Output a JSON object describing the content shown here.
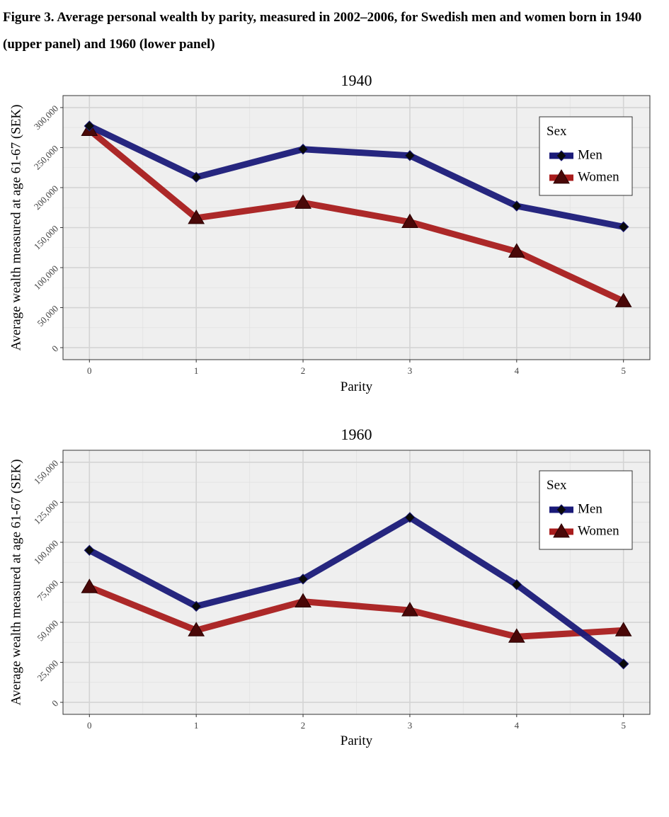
{
  "figure": {
    "label": "Figure 3.",
    "title": "Average personal wealth by parity, measured in 2002–2006, for Swedish men and women born in 1940 (upper panel) and 1960 (lower panel)"
  },
  "colors": {
    "men": "#1a1a78",
    "women": "#a81c1c",
    "panel_bg": "#efefef",
    "grid": "#d4d4d4"
  },
  "chart_data": [
    {
      "type": "line",
      "title": "1940",
      "xlabel": "Parity",
      "ylabel": "Average wealth measured at age 61-67 (SEK)",
      "x": [
        0,
        1,
        2,
        3,
        4,
        5
      ],
      "x_tick_labels": [
        "0",
        "1",
        "2",
        "3",
        "4",
        "5"
      ],
      "ylim": [
        -15000,
        315000
      ],
      "y_ticks": [
        0,
        50000,
        100000,
        150000,
        200000,
        250000,
        300000
      ],
      "y_tick_labels": [
        "0",
        "50,000",
        "100,000",
        "150,000",
        "200,000",
        "250,000",
        "300,000"
      ],
      "legend": {
        "title": "Sex",
        "position": "top-right"
      },
      "series": [
        {
          "name": "Men",
          "marker": "diamond",
          "values": [
            277000,
            213000,
            248000,
            240000,
            177000,
            151000
          ]
        },
        {
          "name": "Women",
          "marker": "triangle",
          "values": [
            272000,
            162000,
            181000,
            157000,
            120000,
            58000
          ]
        }
      ]
    },
    {
      "type": "line",
      "title": "1960",
      "xlabel": "Parity",
      "ylabel": "Average wealth measured at age 61-67 (SEK)",
      "x": [
        0,
        1,
        2,
        3,
        4,
        5
      ],
      "x_tick_labels": [
        "0",
        "1",
        "2",
        "3",
        "4",
        "5"
      ],
      "ylim": [
        -7500,
        157500
      ],
      "y_ticks": [
        0,
        25000,
        50000,
        75000,
        100000,
        125000,
        150000
      ],
      "y_tick_labels": [
        "0",
        "25,000",
        "50,000",
        "75,000",
        "100,000",
        "125,000",
        "150,000"
      ],
      "legend": {
        "title": "Sex",
        "position": "top-right"
      },
      "series": [
        {
          "name": "Men",
          "marker": "diamond",
          "values": [
            95000,
            60000,
            77000,
            115500,
            73500,
            24000
          ]
        },
        {
          "name": "Women",
          "marker": "triangle",
          "values": [
            72000,
            45000,
            63000,
            57500,
            41000,
            45000
          ]
        }
      ]
    }
  ]
}
